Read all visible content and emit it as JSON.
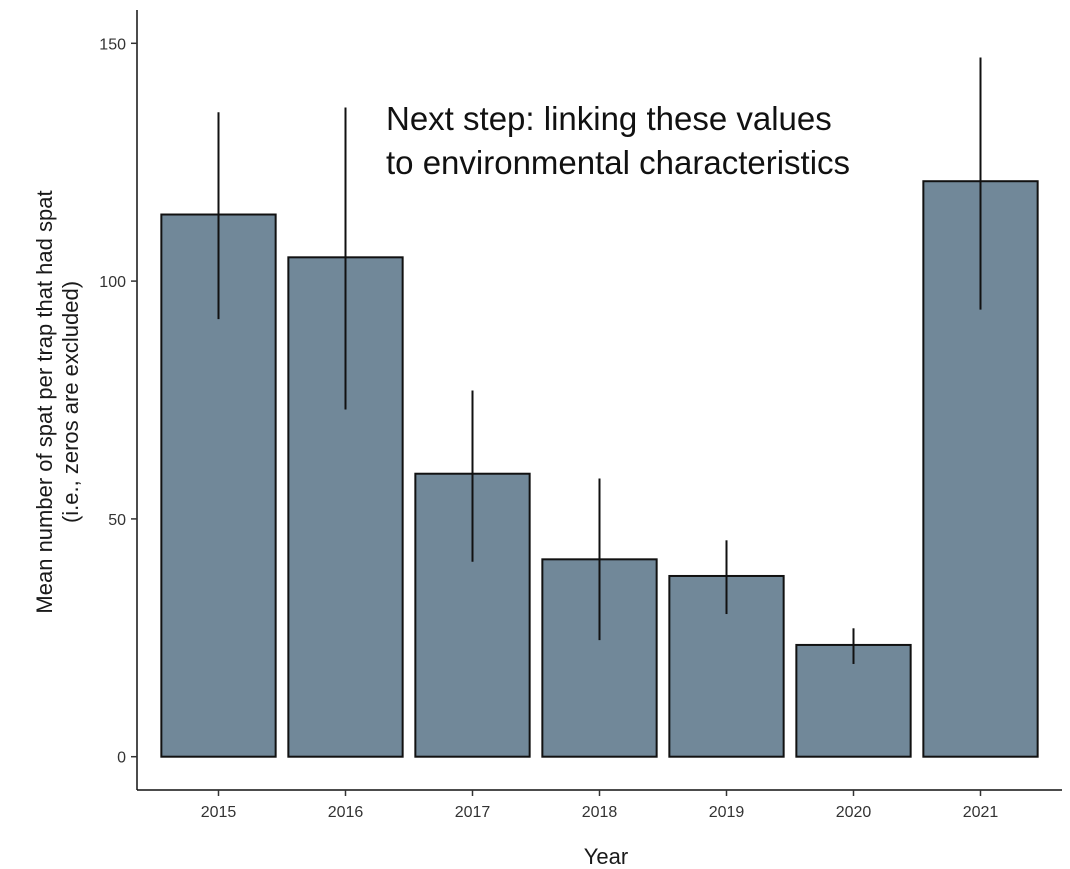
{
  "chart_data": {
    "type": "bar",
    "categories": [
      "2015",
      "2016",
      "2017",
      "2018",
      "2019",
      "2020",
      "2021"
    ],
    "values": [
      114,
      105,
      59.5,
      41.5,
      38,
      23.5,
      121
    ],
    "error_low": [
      92,
      73,
      41,
      24.5,
      30,
      19.5,
      94
    ],
    "error_high": [
      135.5,
      136.5,
      77,
      58.5,
      45.5,
      27,
      147
    ],
    "xlabel": "Year",
    "ylabel_lines": [
      "Mean number of spat per trap that had spat",
      "(i.e., zeros are excluded)"
    ],
    "y_ticks": [
      0,
      50,
      100,
      150
    ],
    "ylim": [
      -7,
      157
    ],
    "annotation_lines": [
      "Next step: linking these values",
      "to environmental characteristics"
    ],
    "grid": false,
    "bar_color": "#718899",
    "bar_edge_color": "#111111"
  }
}
